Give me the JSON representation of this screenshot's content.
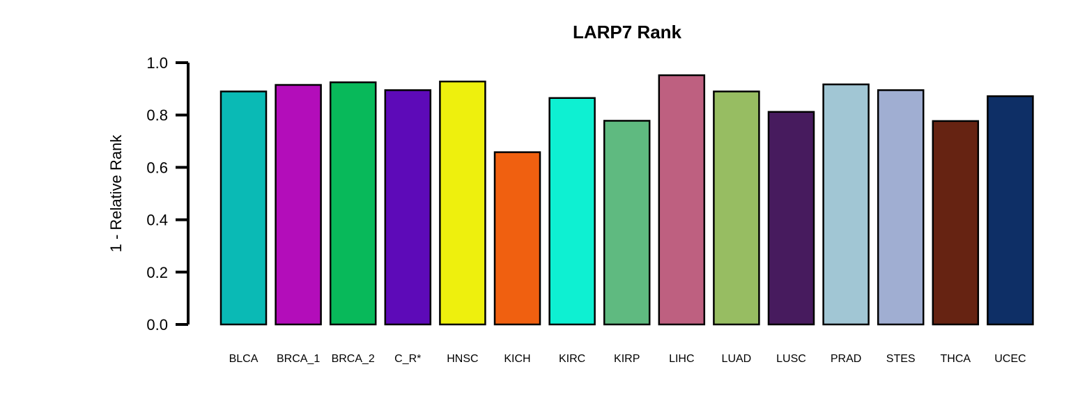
{
  "chart_data": {
    "type": "bar",
    "title": "LARP7 Rank",
    "xlabel": "",
    "ylabel": "1 - Relative Rank",
    "ylim": [
      0,
      1.0
    ],
    "yticks": [
      "0.0",
      "0.2",
      "0.4",
      "0.6",
      "0.8",
      "1.0"
    ],
    "grid": false,
    "categories": [
      "BLCA",
      "BRCA_1",
      "BRCA_2",
      "C_R*",
      "HNSC",
      "KICH",
      "KIRC",
      "KIRP",
      "LIHC",
      "LUAD",
      "LUSC",
      "PRAD",
      "STES",
      "THCA",
      "UCEC"
    ],
    "values": [
      0.89,
      0.915,
      0.925,
      0.895,
      0.928,
      0.658,
      0.865,
      0.778,
      0.952,
      0.89,
      0.812,
      0.917,
      0.895,
      0.777,
      0.872
    ],
    "colors": [
      "#0ABAB5",
      "#B30DBA",
      "#08B95A",
      "#5D0AB8",
      "#EEF00D",
      "#F06010",
      "#0EF0D2",
      "#5FBA80",
      "#BE6080",
      "#97BD62",
      "#471B5E",
      "#A1C6D4",
      "#A0AED2",
      "#662312",
      "#0E2F66"
    ]
  }
}
